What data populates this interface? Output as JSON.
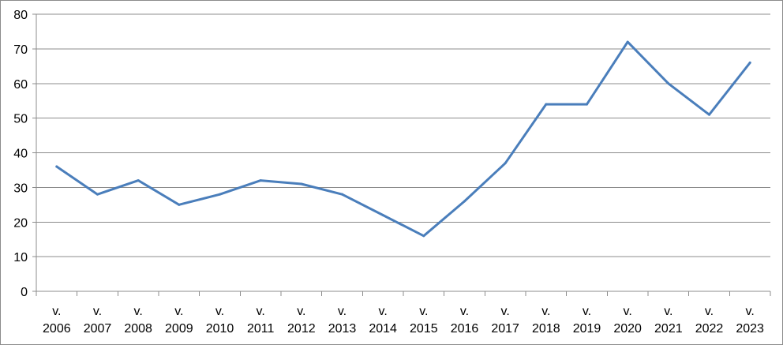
{
  "chart_data": {
    "type": "line",
    "title": "",
    "xlabel": "",
    "ylabel": "",
    "categories": [
      [
        "v.",
        "2006"
      ],
      [
        "v.",
        "2007"
      ],
      [
        "v.",
        "2008"
      ],
      [
        "v.",
        "2009"
      ],
      [
        "v.",
        "2010"
      ],
      [
        "v.",
        "2011"
      ],
      [
        "v.",
        "2012"
      ],
      [
        "v.",
        "2013"
      ],
      [
        "v.",
        "2014"
      ],
      [
        "v.",
        "2015"
      ],
      [
        "v.",
        "2016"
      ],
      [
        "v.",
        "2017"
      ],
      [
        "v.",
        "2018"
      ],
      [
        "v.",
        "2019"
      ],
      [
        "v.",
        "2020"
      ],
      [
        "v.",
        "2021"
      ],
      [
        "v.",
        "2022"
      ],
      [
        "v.",
        "2023"
      ]
    ],
    "series": [
      {
        "values": [
          36,
          28,
          32,
          25,
          28,
          32,
          31,
          28,
          22,
          16,
          26,
          37,
          54,
          54,
          72,
          60,
          51,
          66
        ]
      }
    ],
    "ylim": [
      0,
      80
    ],
    "yticks": [
      "0",
      "10",
      "20",
      "30",
      "40",
      "50",
      "60",
      "70",
      "80"
    ],
    "grid": true,
    "legend": "none",
    "colors": {
      "line": "#4a7ebb",
      "grid": "#8c8c8c",
      "axis": "#8c8c8c"
    }
  }
}
